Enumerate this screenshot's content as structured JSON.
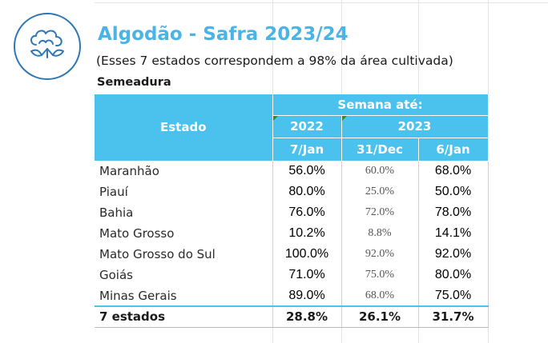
{
  "header": {
    "title": "Algodão - Safra 2023/24",
    "subtitle": "(Esses 7 estados correspondem a 98% da área cultivada)",
    "section": "Semeadura",
    "logo_icon": "cotton-icon",
    "accent_color": "#4bc2ee",
    "title_color": "#4ab4e6"
  },
  "table": {
    "estado_label": "Estado",
    "week_label": "Semana até:",
    "years": [
      "2022",
      "2023"
    ],
    "columns": [
      "7/Jan",
      "31/Dec",
      "6/Jan"
    ],
    "rows": [
      {
        "state": "Maranhão",
        "v2022": "56.0%",
        "dec": "60.0%",
        "jan": "68.0%"
      },
      {
        "state": "Piauí",
        "v2022": "80.0%",
        "dec": "25.0%",
        "jan": "50.0%"
      },
      {
        "state": "Bahia",
        "v2022": "76.0%",
        "dec": "72.0%",
        "jan": "78.0%"
      },
      {
        "state": "Mato Grosso",
        "v2022": "10.2%",
        "dec": "8.8%",
        "jan": "14.1%"
      },
      {
        "state": "Mato Grosso do Sul",
        "v2022": "100.0%",
        "dec": "92.0%",
        "jan": "92.0%"
      },
      {
        "state": "Goiás",
        "v2022": "71.0%",
        "dec": "75.0%",
        "jan": "80.0%"
      },
      {
        "state": "Minas Gerais",
        "v2022": "89.0%",
        "dec": "68.0%",
        "jan": "75.0%"
      }
    ],
    "total": {
      "state": "7 estados",
      "v2022": "28.8%",
      "dec": "26.1%",
      "jan": "31.7%"
    }
  }
}
